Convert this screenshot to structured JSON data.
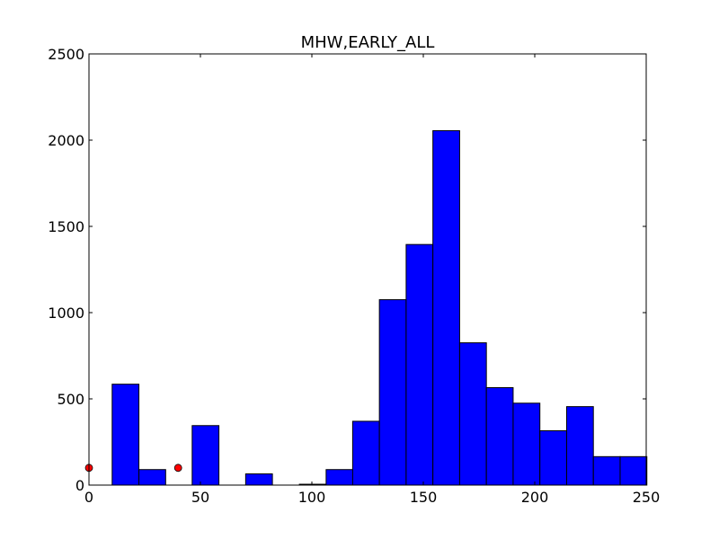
{
  "chart_data": {
    "type": "bar",
    "title": "MHW,EARLY_ALL",
    "xlabel": "",
    "ylabel": "",
    "xlim": [
      0,
      250
    ],
    "ylim": [
      0,
      2500
    ],
    "grid": false,
    "x_ticks": [
      0,
      50,
      100,
      150,
      200,
      250
    ],
    "y_ticks": [
      0,
      500,
      1000,
      1500,
      2000,
      2500
    ],
    "bar_width": 12,
    "bar_color": "#0000ff",
    "bars": [
      {
        "x0": 10.4,
        "value": 585
      },
      {
        "x0": 22.4,
        "value": 90
      },
      {
        "x0": 46.3,
        "value": 345
      },
      {
        "x0": 70.3,
        "value": 65
      },
      {
        "x0": 94.4,
        "value": 5
      },
      {
        "x0": 106.4,
        "value": 90
      },
      {
        "x0": 118.3,
        "value": 370
      },
      {
        "x0": 130.3,
        "value": 1075
      },
      {
        "x0": 142.3,
        "value": 1395
      },
      {
        "x0": 154.3,
        "value": 2055
      },
      {
        "x0": 166.3,
        "value": 825
      },
      {
        "x0": 178.3,
        "value": 565
      },
      {
        "x0": 190.3,
        "value": 475
      },
      {
        "x0": 202.3,
        "value": 315
      },
      {
        "x0": 214.3,
        "value": 455
      },
      {
        "x0": 226.3,
        "value": 165
      },
      {
        "x0": 238.3,
        "value": 165
      }
    ],
    "markers": {
      "color": "#ff0000",
      "points": [
        {
          "x": 0,
          "y": 100
        },
        {
          "x": 40,
          "y": 100
        }
      ]
    }
  }
}
